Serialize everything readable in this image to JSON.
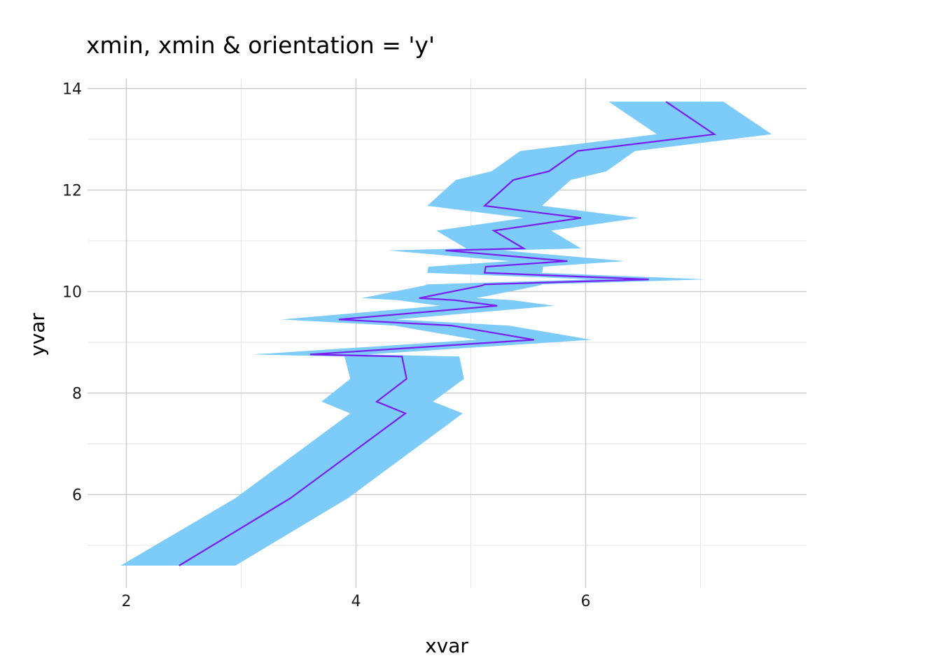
{
  "chart_data": {
    "type": "area",
    "title": "xmin, xmin & orientation = 'y'",
    "xlabel": "xvar",
    "ylabel": "yvar",
    "orientation": "y",
    "xlim": [
      1.98,
      7.86
    ],
    "ylim": [
      4.2,
      14.2
    ],
    "x_ticks": [
      2,
      4,
      6
    ],
    "y_ticks": [
      6,
      8,
      10,
      12,
      14
    ],
    "grid": true,
    "colors": {
      "ribbon": "#7ccbf9",
      "line": "#7b1df0",
      "grid_major": "#cccccc",
      "grid_minor": "#e3e3e3"
    },
    "series": [
      {
        "role": "ribbon",
        "points": [
          {
            "y": 4.6,
            "xmin": 1.95,
            "x": 2.46,
            "xmax": 2.95
          },
          {
            "y": 5.93,
            "xmin": 2.95,
            "x": 3.43,
            "xmax": 3.93
          },
          {
            "y": 7.6,
            "xmin": 3.95,
            "x": 4.43,
            "xmax": 4.93
          },
          {
            "y": 7.83,
            "xmin": 3.7,
            "x": 4.18,
            "xmax": 4.67
          },
          {
            "y": 8.28,
            "xmin": 3.95,
            "x": 4.44,
            "xmax": 4.94
          },
          {
            "y": 8.72,
            "xmin": 3.9,
            "x": 4.4,
            "xmax": 4.9
          },
          {
            "y": 8.76,
            "xmin": 3.1,
            "x": 3.6,
            "xmax": 4.1
          },
          {
            "y": 9.05,
            "xmin": 5.05,
            "x": 5.55,
            "xmax": 6.05
          },
          {
            "y": 9.33,
            "xmin": 4.33,
            "x": 4.83,
            "xmax": 5.33
          },
          {
            "y": 9.45,
            "xmin": 3.35,
            "x": 3.85,
            "xmax": 4.35
          },
          {
            "y": 9.72,
            "xmin": 4.73,
            "x": 5.23,
            "xmax": 5.73
          },
          {
            "y": 9.83,
            "xmin": 4.36,
            "x": 4.86,
            "xmax": 5.36
          },
          {
            "y": 9.87,
            "xmin": 4.05,
            "x": 4.55,
            "xmax": 5.05
          },
          {
            "y": 10.12,
            "xmin": 4.6,
            "x": 5.1,
            "xmax": 5.6
          },
          {
            "y": 10.14,
            "xmin": 4.62,
            "x": 5.12,
            "xmax": 5.62
          },
          {
            "y": 10.24,
            "xmin": 6.05,
            "x": 6.55,
            "xmax": 7.05
          },
          {
            "y": 10.37,
            "xmin": 4.62,
            "x": 5.12,
            "xmax": 5.62
          },
          {
            "y": 10.49,
            "xmin": 4.63,
            "x": 5.13,
            "xmax": 5.63
          },
          {
            "y": 10.6,
            "xmin": 5.34,
            "x": 5.84,
            "xmax": 6.34
          },
          {
            "y": 10.81,
            "xmin": 4.28,
            "x": 4.78,
            "xmax": 5.28
          },
          {
            "y": 10.85,
            "xmin": 4.96,
            "x": 5.46,
            "xmax": 5.96
          },
          {
            "y": 11.2,
            "xmin": 4.7,
            "x": 5.2,
            "xmax": 5.7
          },
          {
            "y": 11.45,
            "xmin": 5.46,
            "x": 5.96,
            "xmax": 6.46
          },
          {
            "y": 11.69,
            "xmin": 4.62,
            "x": 5.12,
            "xmax": 5.62
          },
          {
            "y": 12.2,
            "xmin": 4.87,
            "x": 5.37,
            "xmax": 5.87
          },
          {
            "y": 12.37,
            "xmin": 5.18,
            "x": 5.68,
            "xmax": 6.18
          },
          {
            "y": 12.77,
            "xmin": 5.43,
            "x": 5.93,
            "xmax": 6.43
          },
          {
            "y": 13.1,
            "xmin": 6.62,
            "x": 7.12,
            "xmax": 7.62
          },
          {
            "y": 13.74,
            "xmin": 6.2,
            "x": 6.7,
            "xmax": 7.2
          }
        ]
      }
    ]
  }
}
